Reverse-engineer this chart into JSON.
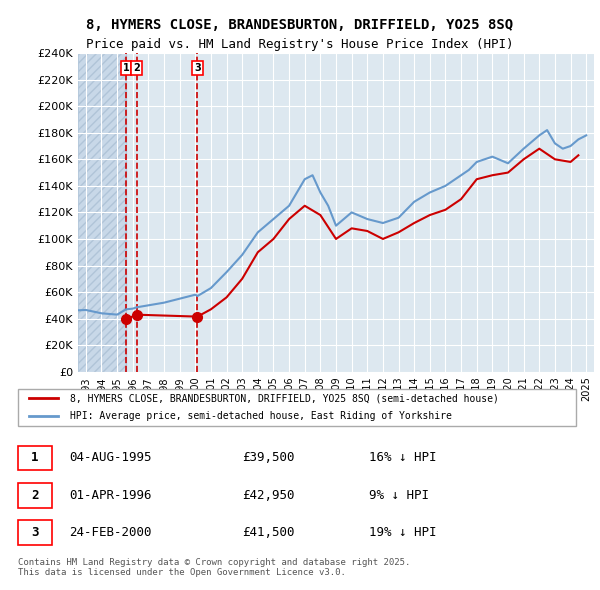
{
  "title_line1": "8, HYMERS CLOSE, BRANDESBURTON, DRIFFIELD, YO25 8SQ",
  "title_line2": "Price paid vs. HM Land Registry's House Price Index (HPI)",
  "legend_label_red": "8, HYMERS CLOSE, BRANDESBURTON, DRIFFIELD, YO25 8SQ (semi-detached house)",
  "legend_label_blue": "HPI: Average price, semi-detached house, East Riding of Yorkshire",
  "footnote": "Contains HM Land Registry data © Crown copyright and database right 2025.\nThis data is licensed under the Open Government Licence v3.0.",
  "transactions": [
    {
      "num": 1,
      "date": "04-AUG-1995",
      "price": 39500,
      "hpi_diff": "16% ↓ HPI",
      "x_year": 1995.58
    },
    {
      "num": 2,
      "date": "01-APR-1996",
      "price": 42950,
      "hpi_diff": "9% ↓ HPI",
      "x_year": 1996.25
    },
    {
      "num": 3,
      "date": "24-FEB-2000",
      "price": 41500,
      "hpi_diff": "19% ↓ HPI",
      "x_year": 2000.14
    }
  ],
  "ylim": [
    0,
    240000
  ],
  "yticks": [
    0,
    20000,
    40000,
    60000,
    80000,
    100000,
    120000,
    140000,
    160000,
    180000,
    200000,
    220000,
    240000
  ],
  "xlim_start": 1992.5,
  "xlim_end": 2025.5,
  "hpi_color": "#6699cc",
  "price_color": "#cc0000",
  "background_plot": "#dde8f0",
  "background_hatch": "#c8d8e8",
  "grid_color": "#ffffff",
  "hpi_line": {
    "x": [
      1992,
      1993,
      1994,
      1995,
      1995.58,
      1996,
      1996.25,
      1997,
      1998,
      1999,
      2000,
      2000.14,
      2001,
      2002,
      2003,
      2004,
      2005,
      2006,
      2007,
      2007.5,
      2008,
      2008.5,
      2009,
      2009.5,
      2010,
      2011,
      2012,
      2013,
      2014,
      2015,
      2016,
      2017,
      2017.5,
      2018,
      2018.5,
      2019,
      2020,
      2021,
      2022,
      2022.5,
      2023,
      2023.5,
      2024,
      2024.5,
      2025
    ],
    "y": [
      46000,
      46500,
      44000,
      43000,
      47000,
      47500,
      48500,
      50000,
      52000,
      55000,
      58000,
      57000,
      63000,
      75000,
      88000,
      105000,
      115000,
      125000,
      145000,
      148000,
      135000,
      125000,
      110000,
      115000,
      120000,
      115000,
      112000,
      116000,
      128000,
      135000,
      140000,
      148000,
      152000,
      158000,
      160000,
      162000,
      157000,
      168000,
      178000,
      182000,
      172000,
      168000,
      170000,
      175000,
      178000
    ]
  },
  "price_line": {
    "x": [
      1995.58,
      1996.25,
      2000.14,
      2001,
      2002,
      2003,
      2004,
      2005,
      2006,
      2007,
      2008,
      2009,
      2010,
      2011,
      2012,
      2013,
      2014,
      2015,
      2016,
      2017,
      2018,
      2019,
      2020,
      2021,
      2022,
      2023,
      2024,
      2024.5
    ],
    "y": [
      39500,
      42950,
      41500,
      47000,
      56000,
      70000,
      90000,
      100000,
      115000,
      125000,
      118000,
      100000,
      108000,
      106000,
      100000,
      105000,
      112000,
      118000,
      122000,
      130000,
      145000,
      148000,
      150000,
      160000,
      168000,
      160000,
      158000,
      163000
    ]
  }
}
